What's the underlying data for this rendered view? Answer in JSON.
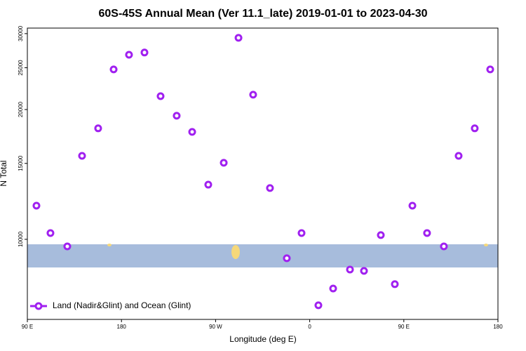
{
  "chart_data": {
    "type": "scatter",
    "title": "60S-45S Annual Mean (Ver 11.1_late)   2019-01-01 to 2023-04-30",
    "x_label": "Longitude (deg E)",
    "y_label": "N Total",
    "log_y": true,
    "xlim": [
      90,
      540
    ],
    "ylim": [
      6520,
      30900
    ],
    "xticks": [
      {
        "value": 90,
        "label": "90 E"
      },
      {
        "value": 180,
        "label": "180"
      },
      {
        "value": 270,
        "label": "90 W"
      },
      {
        "value": 360,
        "label": "0"
      },
      {
        "value": 450,
        "label": "90 E"
      },
      {
        "value": 540,
        "label": "180"
      }
    ],
    "yticks": [
      10000,
      15000,
      20000,
      25000,
      30000
    ],
    "legend_position": "bottom-left",
    "series": [
      {
        "name": "Land (Nadir&Glint) and Ocean (Glint)",
        "color": "#a020f0",
        "x": [
          98.7,
          112.1,
          128.2,
          142.3,
          157.7,
          172.5,
          187.2,
          202.0,
          217.4,
          232.8,
          247.6,
          263.0,
          277.8,
          291.9,
          305.9,
          322.0,
          338.1,
          352.2,
          368.3,
          382.4,
          398.5,
          411.9,
          428.0,
          441.4,
          458.2,
          472.2,
          488.3,
          502.4,
          517.8,
          532.6
        ],
        "values": [
          11970,
          10340,
          9630,
          15620,
          18090,
          24780,
          26800,
          27120,
          21480,
          19350,
          17750,
          13390,
          15050,
          29330,
          21650,
          13150,
          9040,
          10340,
          7030,
          7690,
          8510,
          8450,
          10230,
          7870,
          11970,
          10340,
          9630,
          15620,
          18090,
          24780
        ]
      }
    ]
  }
}
